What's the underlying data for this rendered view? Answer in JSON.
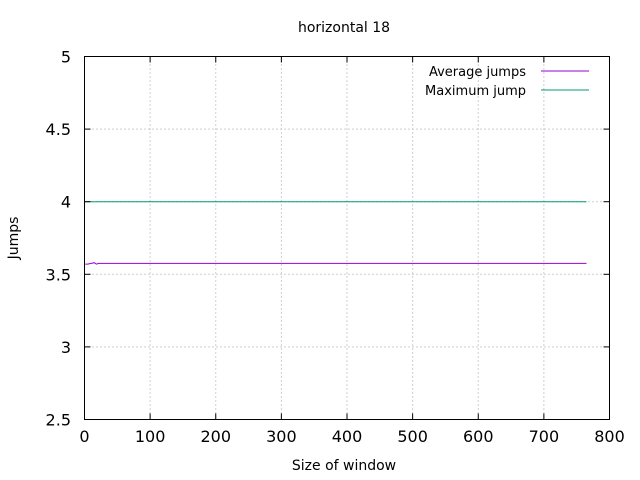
{
  "chart_data": {
    "type": "line",
    "title": "horizontal 18",
    "xlabel": "Size of window",
    "ylabel": "Jumps",
    "xlim": [
      0,
      800
    ],
    "ylim": [
      2.5,
      5
    ],
    "xticks": [
      "0",
      "100",
      "200",
      "300",
      "400",
      "500",
      "600",
      "700",
      "800"
    ],
    "yticks": [
      "2.5",
      "3",
      "3.5",
      "4",
      "4.5",
      "5"
    ],
    "grid": true,
    "legend": "top-right",
    "series": [
      {
        "name": "Average jumps",
        "color": "#9400d3",
        "x": [
          1,
          5,
          10,
          15,
          18,
          22,
          26,
          30,
          40,
          60,
          100,
          200,
          300,
          400,
          500,
          600,
          700,
          765
        ],
        "y": [
          3.57,
          3.57,
          3.575,
          3.58,
          3.57,
          3.575,
          3.575,
          3.575,
          3.575,
          3.575,
          3.575,
          3.575,
          3.575,
          3.575,
          3.575,
          3.575,
          3.575,
          3.575
        ]
      },
      {
        "name": "Maximum jump",
        "color": "#009e73",
        "x": [
          1,
          765
        ],
        "y": [
          4,
          4
        ]
      }
    ]
  }
}
